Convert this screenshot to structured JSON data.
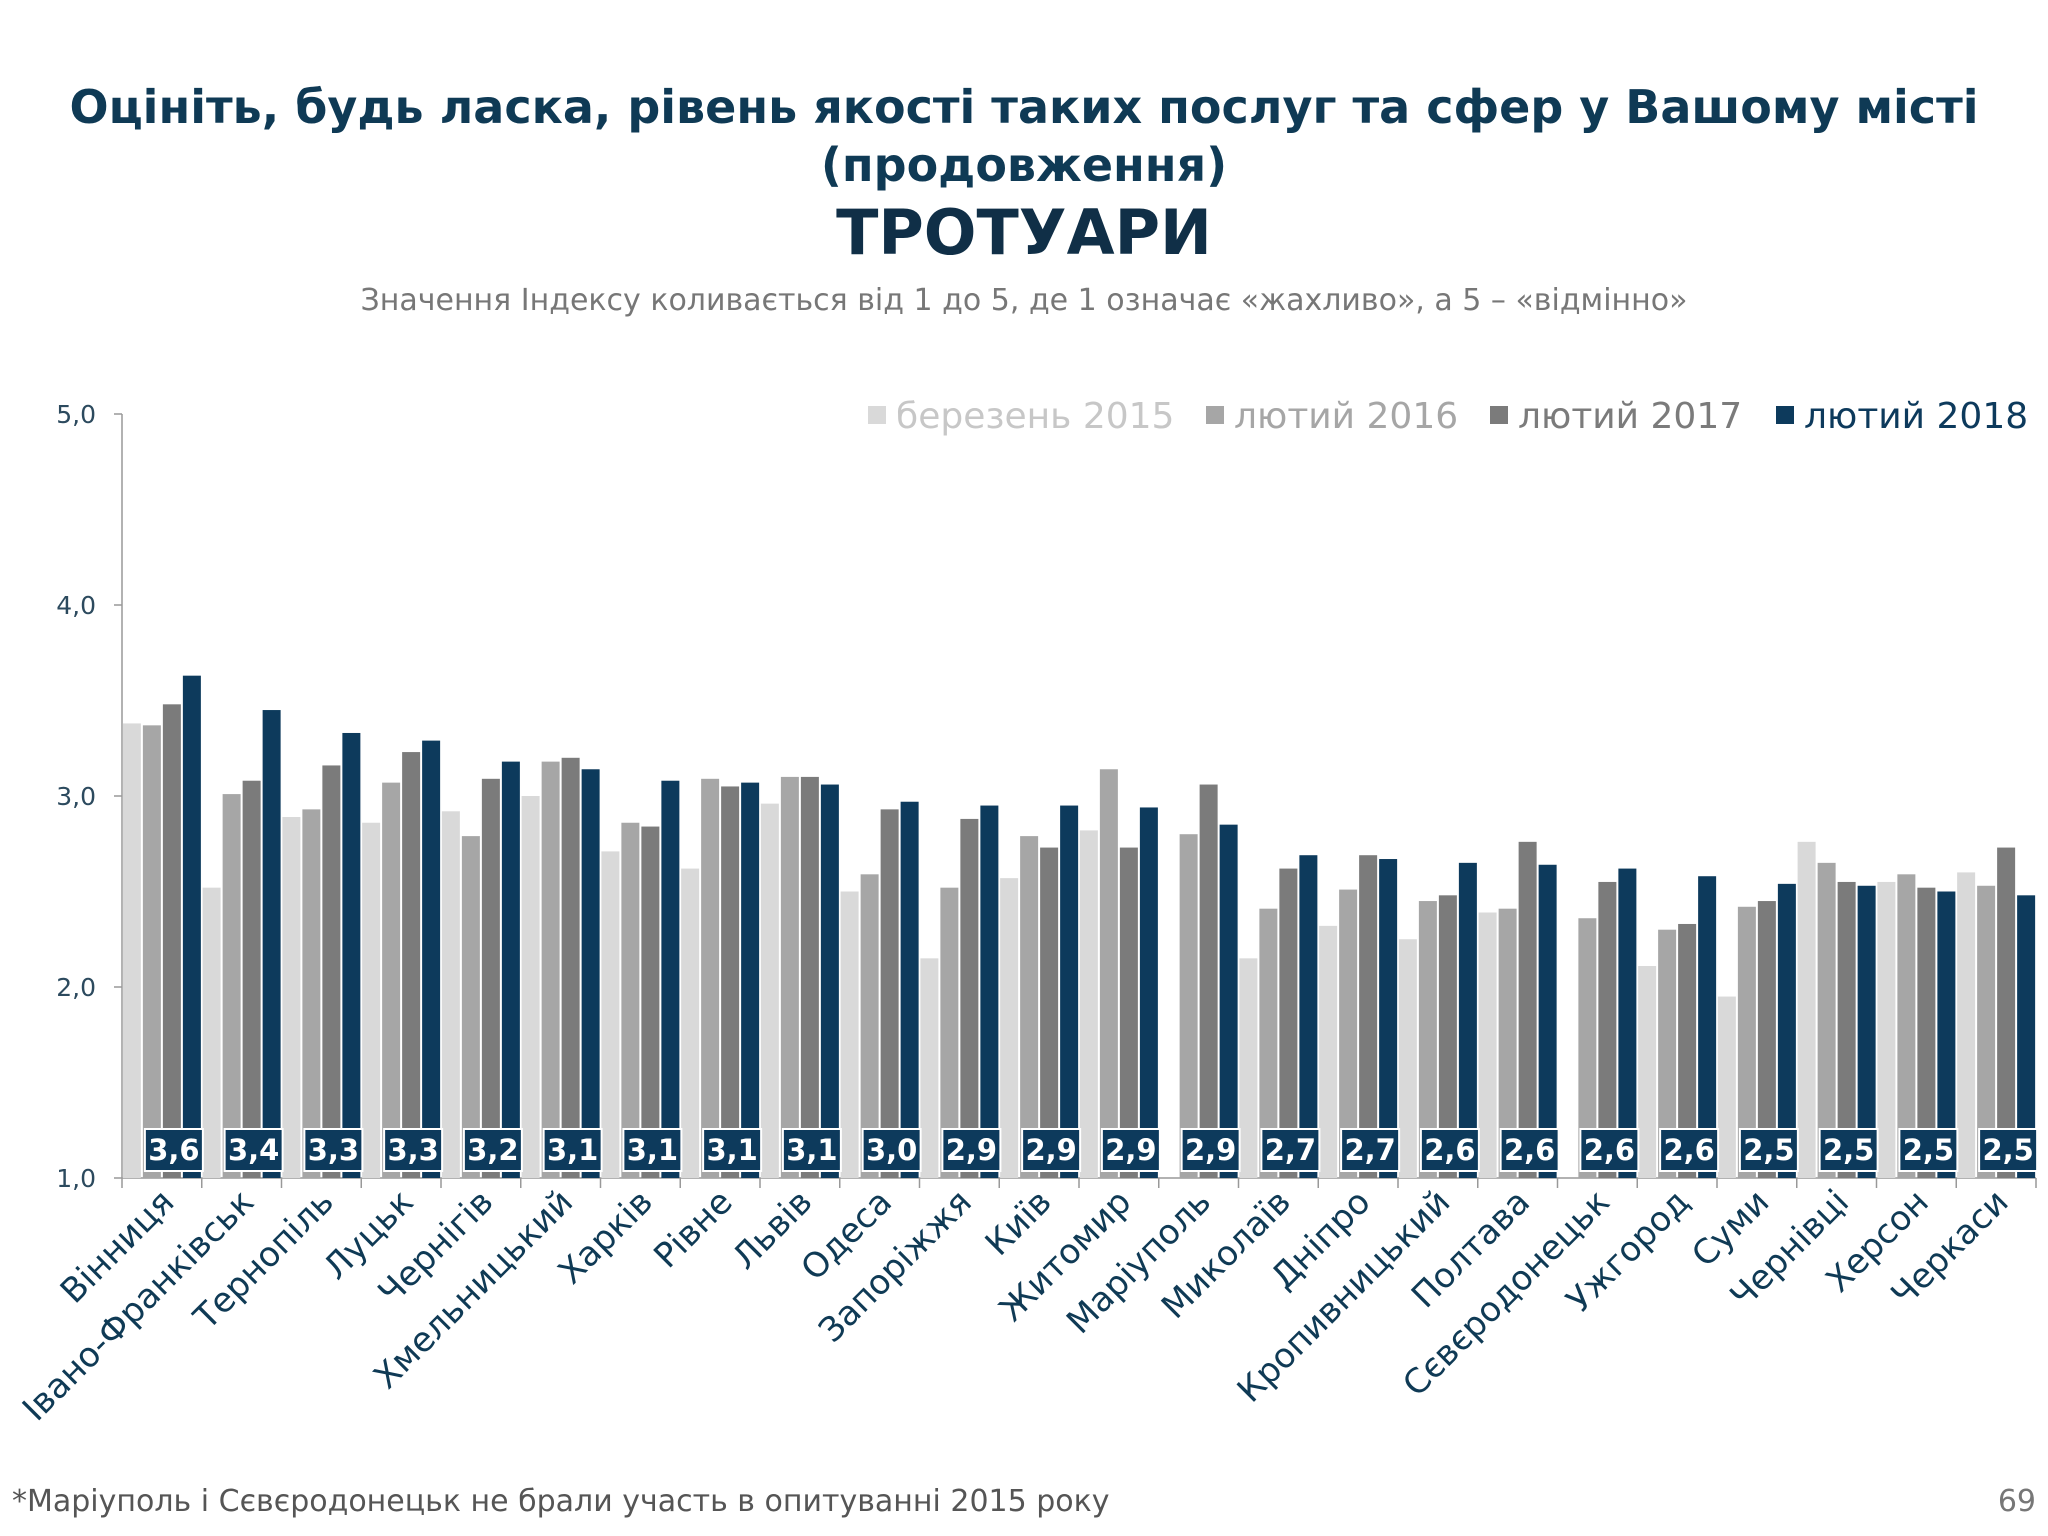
{
  "title": {
    "line1": "Оцініть, будь ласка, рівень якості таких послуг та сфер у Вашому місті",
    "line2": "(продовження)",
    "main": "ТРОТУАРИ",
    "note": "Значення Індексу коливається від 1 до 5, де 1 означає «жахливо», а 5 – «відмінно»"
  },
  "footnote": "*Маріуполь і Сєвєродонецьк не брали участь в опитуванні 2015 року",
  "page_number": "69",
  "colors": {
    "s2015": "#d9d9d9",
    "s2016": "#a6a6a6",
    "s2017": "#7b7b7b",
    "s2018": "#0d3a5c",
    "title": "#0f3a55"
  },
  "chart_data": {
    "type": "bar",
    "title": "ТРОТУАРИ",
    "xlabel": "",
    "ylabel": "",
    "ylim": [
      1.0,
      5.0
    ],
    "yticks": [
      1.0,
      2.0,
      3.0,
      4.0,
      5.0
    ],
    "ytick_labels": [
      "1,0",
      "2,0",
      "3,0",
      "4,0",
      "5,0"
    ],
    "legend_position": "top-right",
    "categories": [
      "Вінниця",
      "Івано-Франківськ",
      "Тернопіль",
      "Луцьк",
      "Чернігів",
      "Хмельницький",
      "Харків",
      "Рівне",
      "Львів",
      "Одеса",
      "Запоріжжя",
      "Київ",
      "Житомир",
      "Маріуполь",
      "Миколаїв",
      "Дніпро",
      "Кропивницький",
      "Полтава",
      "Сєвєродонецьк",
      "Ужгород",
      "Суми",
      "Чернівці",
      "Херсон",
      "Черкаси"
    ],
    "series": [
      {
        "name": "березень 2015",
        "color": "#d9d9d9",
        "values": [
          3.38,
          2.52,
          2.89,
          2.86,
          2.92,
          3.0,
          2.71,
          2.62,
          2.96,
          2.5,
          2.15,
          2.57,
          2.82,
          null,
          2.15,
          2.32,
          2.25,
          2.39,
          null,
          2.11,
          1.95,
          2.76,
          2.55,
          2.6
        ]
      },
      {
        "name": "лютий 2016",
        "color": "#a6a6a6",
        "values": [
          3.37,
          3.01,
          2.93,
          3.07,
          2.79,
          3.18,
          2.86,
          3.09,
          3.1,
          2.59,
          2.52,
          2.79,
          3.14,
          2.8,
          2.41,
          2.51,
          2.45,
          2.41,
          2.36,
          2.3,
          2.42,
          2.65,
          2.59,
          2.53
        ]
      },
      {
        "name": "лютий 2017",
        "color": "#7b7b7b",
        "values": [
          3.48,
          3.08,
          3.16,
          3.23,
          3.09,
          3.2,
          2.84,
          3.05,
          3.1,
          2.93,
          2.88,
          2.73,
          2.73,
          3.06,
          2.62,
          2.69,
          2.48,
          2.76,
          2.55,
          2.33,
          2.45,
          2.55,
          2.52,
          2.73
        ]
      },
      {
        "name": "лютий 2018",
        "color": "#0d3a5c",
        "values": [
          3.63,
          3.45,
          3.33,
          3.29,
          3.18,
          3.14,
          3.08,
          3.07,
          3.06,
          2.97,
          2.95,
          2.95,
          2.94,
          2.85,
          2.69,
          2.67,
          2.65,
          2.64,
          2.62,
          2.58,
          2.54,
          2.53,
          2.5,
          2.48
        ]
      }
    ],
    "data_labels_2018": [
      "3,6",
      "3,4",
      "3,3",
      "3,3",
      "3,2",
      "3,1",
      "3,1",
      "3,1",
      "3,1",
      "3,0",
      "2,9",
      "2,9",
      "2,9",
      "2,9",
      "2,7",
      "2,7",
      "2,6",
      "2,6",
      "2,6",
      "2,6",
      "2,5",
      "2,5",
      "2,5",
      "2,5"
    ]
  }
}
